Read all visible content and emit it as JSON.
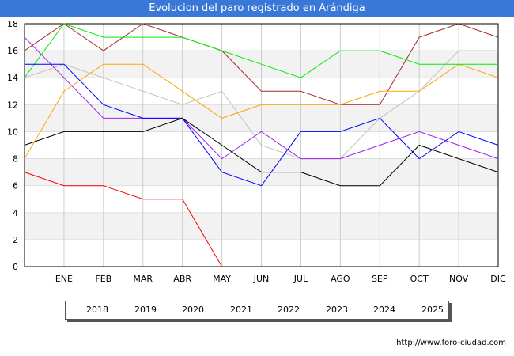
{
  "title": "Evolucion del paro registrado en Arándiga",
  "source": "http://www.foro-ciudad.com",
  "chart_data": {
    "type": "line",
    "title": "Evolucion del paro registrado en Arándiga",
    "categories": [
      "",
      "ENE",
      "FEB",
      "MAR",
      "ABR",
      "MAY",
      "JUN",
      "JUL",
      "AGO",
      "SEP",
      "OCT",
      "NOV",
      "DIC"
    ],
    "ylim": [
      0,
      18
    ],
    "yticks": [
      0,
      2,
      4,
      6,
      8,
      10,
      12,
      14,
      16,
      18
    ],
    "grid": true,
    "legend_position": "bottom",
    "series": [
      {
        "name": "2018",
        "color": "#c0c0c0",
        "values": [
          14,
          15,
          14,
          13,
          12,
          13,
          9,
          8,
          8,
          11,
          13,
          16,
          16
        ]
      },
      {
        "name": "2019",
        "color": "#a52a2a",
        "values": [
          16,
          18,
          16,
          18,
          17,
          16,
          13,
          13,
          12,
          12,
          17,
          18,
          17
        ]
      },
      {
        "name": "2020",
        "color": "#a020f0",
        "values": [
          17,
          14,
          11,
          11,
          11,
          8,
          10,
          8,
          8,
          9,
          10,
          9,
          8
        ]
      },
      {
        "name": "2021",
        "color": "#ffa500",
        "values": [
          8,
          13,
          15,
          15,
          13,
          11,
          12,
          12,
          12,
          13,
          13,
          15,
          14
        ]
      },
      {
        "name": "2022",
        "color": "#00ee00",
        "values": [
          14,
          18,
          17,
          17,
          17,
          16,
          15,
          14,
          16,
          16,
          15,
          15,
          15
        ]
      },
      {
        "name": "2023",
        "color": "#0000ff",
        "values": [
          15,
          15,
          12,
          11,
          11,
          7,
          6,
          10,
          10,
          11,
          8,
          10,
          9
        ]
      },
      {
        "name": "2024",
        "color": "#000000",
        "values": [
          9,
          10,
          10,
          10,
          11,
          9,
          7,
          7,
          6,
          6,
          9,
          8,
          7
        ]
      },
      {
        "name": "2025",
        "color": "#ff0000",
        "values": [
          7,
          6,
          6,
          5,
          5,
          0,
          null,
          null,
          null,
          null,
          null,
          null,
          null
        ]
      }
    ]
  }
}
